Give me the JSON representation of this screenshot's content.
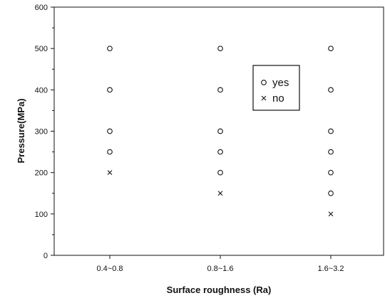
{
  "chart_data": {
    "type": "scatter",
    "xlabel": "Surface roughness (Ra)",
    "ylabel": "Pressure(MPa)",
    "categories": [
      "0.4~0.8",
      "0.8~1.6",
      "1.6~3.2"
    ],
    "ylim": [
      0,
      600
    ],
    "yticks": [
      0,
      100,
      200,
      300,
      400,
      500,
      600
    ],
    "grid": false,
    "legend_position": "top-right",
    "series": [
      {
        "name": "yes",
        "marker": "o",
        "points": [
          {
            "x": "0.4~0.8",
            "y": 250
          },
          {
            "x": "0.4~0.8",
            "y": 300
          },
          {
            "x": "0.4~0.8",
            "y": 400
          },
          {
            "x": "0.4~0.8",
            "y": 500
          },
          {
            "x": "0.8~1.6",
            "y": 200
          },
          {
            "x": "0.8~1.6",
            "y": 250
          },
          {
            "x": "0.8~1.6",
            "y": 300
          },
          {
            "x": "0.8~1.6",
            "y": 400
          },
          {
            "x": "0.8~1.6",
            "y": 500
          },
          {
            "x": "1.6~3.2",
            "y": 150
          },
          {
            "x": "1.6~3.2",
            "y": 200
          },
          {
            "x": "1.6~3.2",
            "y": 250
          },
          {
            "x": "1.6~3.2",
            "y": 300
          },
          {
            "x": "1.6~3.2",
            "y": 400
          },
          {
            "x": "1.6~3.2",
            "y": 500
          }
        ]
      },
      {
        "name": "no",
        "marker": "x",
        "points": [
          {
            "x": "0.4~0.8",
            "y": 200
          },
          {
            "x": "0.8~1.6",
            "y": 150
          },
          {
            "x": "1.6~3.2",
            "y": 100
          }
        ]
      }
    ]
  }
}
